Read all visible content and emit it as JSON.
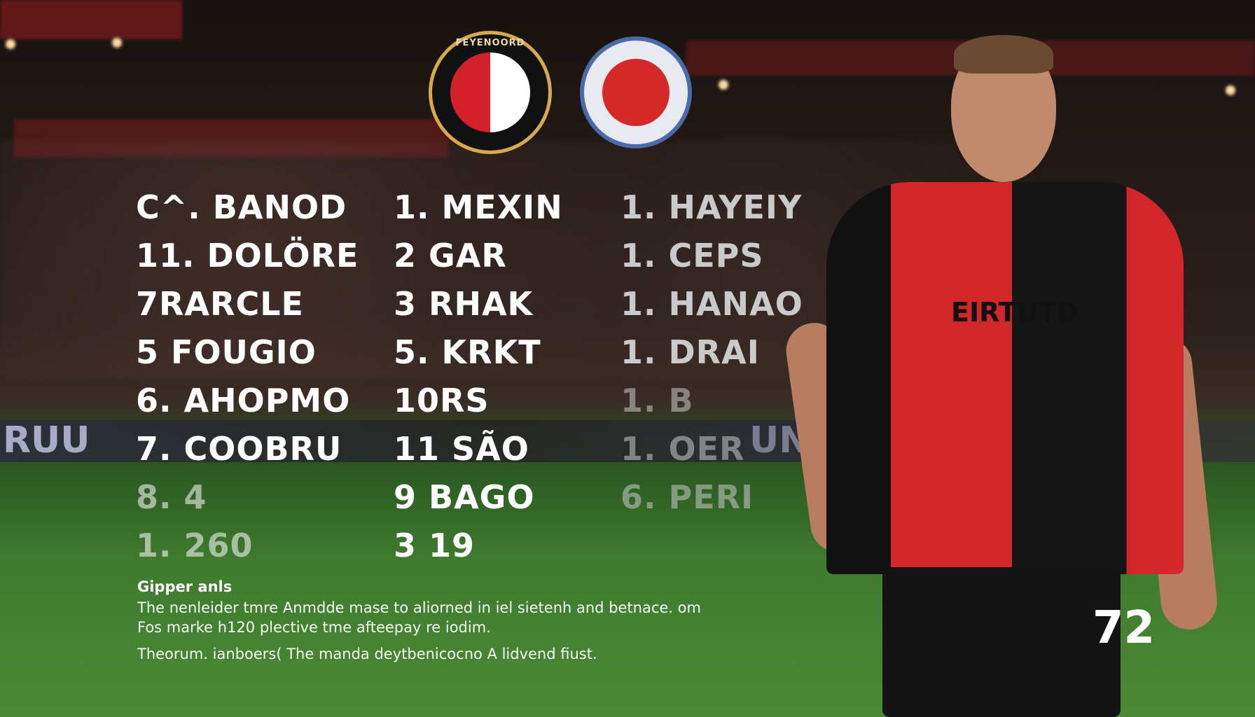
{
  "columns": [
    {
      "rows": [
        "C^. BANOD",
        "11. DOLÖRE",
        "7RARCLE",
        "5 FOUGIO",
        "6. AHOPMO",
        "7. COOBRU",
        "8. 4",
        "1. 260"
      ]
    },
    {
      "rows": [
        "1. MEXIN",
        "2 GAR",
        "3 RHAK",
        "5. KRKT",
        "10RS",
        "11 SÃO",
        "9 BAGO",
        "3 19"
      ]
    },
    {
      "rows": [
        "1. HAYEIY",
        "1. CEPS",
        "1. HANAO",
        "1. DRAI",
        "1. B",
        "1. OER",
        "6. PERI"
      ]
    }
  ],
  "notes": {
    "heading": "Gipper anls",
    "lines": [
      "The nenleider tmre Anmdde mase to aliorned in iel sietenh and betnace. om",
      "Fos marke h120 plective tme afteepay re iodim.",
      "Theorum. ianboers( The manda deytbenicocno A lidvend fiust."
    ]
  },
  "badges": {
    "home_text": "FEYENOORD",
    "away_text": ""
  },
  "player": {
    "sponsor": "EIRTUTD",
    "number": "72"
  },
  "ads": {
    "left": "RUU",
    "center": "UNUER"
  },
  "colors": {
    "primary": "#d2262a",
    "secondary": "#151515",
    "pitch": "#3f7a2e"
  }
}
